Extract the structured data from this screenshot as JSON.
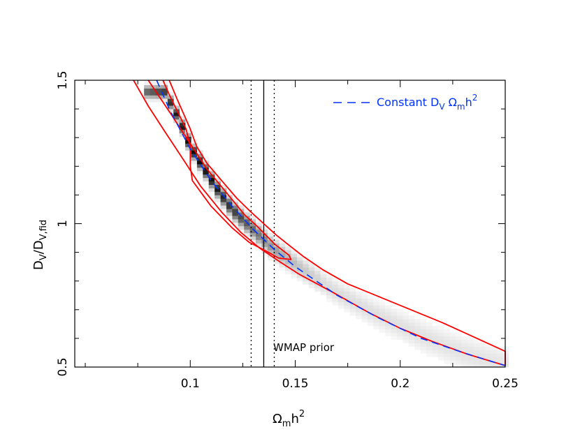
{
  "chart_data": {
    "type": "heatmap",
    "title": "",
    "xlabel": {
      "main": "Ω",
      "sub": "m",
      "rest": "h",
      "sup": "2"
    },
    "ylabel": {
      "main": "D",
      "sub": "V",
      "mid": "/D",
      "sub2": "V,fid"
    },
    "xlim": [
      0.045,
      0.25
    ],
    "ylim": [
      0.5,
      1.5
    ],
    "x_ticks": [
      {
        "value": 0.1,
        "label": "0.1"
      },
      {
        "value": 0.15,
        "label": "0.15"
      },
      {
        "value": 0.2,
        "label": "0.2"
      },
      {
        "value": 0.25,
        "label": "0.25"
      }
    ],
    "y_ticks": [
      {
        "value": 0.5,
        "label": "0.5"
      },
      {
        "value": 1.0,
        "label": "1"
      },
      {
        "value": 1.5,
        "label": "1.5"
      }
    ],
    "density": {
      "description_ridge": "grayscale posterior density concentrated along a ridge",
      "ridge": [
        [
          0.088,
          1.46
        ],
        [
          0.095,
          1.36
        ],
        [
          0.1,
          1.27
        ],
        [
          0.106,
          1.2
        ],
        [
          0.113,
          1.12
        ],
        [
          0.12,
          1.05
        ],
        [
          0.13,
          0.98
        ],
        [
          0.14,
          0.91
        ],
        [
          0.15,
          0.86
        ],
        [
          0.17,
          0.76
        ],
        [
          0.19,
          0.68
        ],
        [
          0.21,
          0.61
        ],
        [
          0.23,
          0.55
        ],
        [
          0.25,
          0.505
        ]
      ],
      "peak": [
        0.102,
        1.25
      ]
    },
    "contours": [
      {
        "name": "inner",
        "color": "#ff0000",
        "points": [
          [
            0.08,
            1.5
          ],
          [
            0.091,
            1.38
          ],
          [
            0.099,
            1.29
          ],
          [
            0.108,
            1.19
          ],
          [
            0.117,
            1.11
          ],
          [
            0.126,
            1.03
          ],
          [
            0.132,
            0.99
          ],
          [
            0.14,
            0.93
          ],
          [
            0.147,
            0.89
          ],
          [
            0.148,
            0.875
          ],
          [
            0.142,
            0.88
          ],
          [
            0.136,
            0.905
          ],
          [
            0.128,
            0.935
          ],
          [
            0.12,
            0.985
          ],
          [
            0.11,
            1.06
          ],
          [
            0.101,
            1.15
          ],
          [
            0.1,
            1.2
          ],
          [
            0.1,
            1.27
          ],
          [
            0.098,
            1.33
          ],
          [
            0.094,
            1.39
          ],
          [
            0.09,
            1.45
          ],
          [
            0.087,
            1.5
          ]
        ]
      },
      {
        "name": "outer",
        "color": "#ff0000",
        "points": [
          [
            0.073,
            1.5
          ],
          [
            0.08,
            1.41
          ],
          [
            0.088,
            1.32
          ],
          [
            0.097,
            1.22
          ],
          [
            0.105,
            1.13
          ],
          [
            0.115,
            1.04
          ],
          [
            0.124,
            0.97
          ],
          [
            0.133,
            0.915
          ],
          [
            0.142,
            0.87
          ],
          [
            0.152,
            0.823
          ],
          [
            0.168,
            0.76
          ],
          [
            0.185,
            0.69
          ],
          [
            0.2,
            0.635
          ],
          [
            0.215,
            0.59
          ],
          [
            0.232,
            0.545
          ],
          [
            0.25,
            0.505
          ],
          [
            0.25,
            0.555
          ],
          [
            0.235,
            0.605
          ],
          [
            0.22,
            0.655
          ],
          [
            0.205,
            0.7
          ],
          [
            0.19,
            0.745
          ],
          [
            0.175,
            0.79
          ],
          [
            0.163,
            0.84
          ],
          [
            0.154,
            0.885
          ],
          [
            0.147,
            0.925
          ],
          [
            0.141,
            0.96
          ],
          [
            0.135,
            1.0
          ],
          [
            0.129,
            1.04
          ],
          [
            0.122,
            1.09
          ],
          [
            0.115,
            1.15
          ],
          [
            0.108,
            1.21
          ],
          [
            0.103,
            1.27
          ],
          [
            0.1,
            1.33
          ],
          [
            0.097,
            1.38
          ],
          [
            0.094,
            1.43
          ],
          [
            0.09,
            1.5
          ]
        ]
      }
    ],
    "dashed_curve": {
      "name": "Constant D_V Ω_m h^2",
      "color": "#0033ff",
      "points": [
        [
          0.084,
          1.5
        ],
        [
          0.09,
          1.4
        ],
        [
          0.1,
          1.26
        ],
        [
          0.11,
          1.15
        ],
        [
          0.12,
          1.06
        ],
        [
          0.13,
          0.98
        ],
        [
          0.14,
          0.91
        ],
        [
          0.15,
          0.85
        ],
        [
          0.17,
          0.75
        ],
        [
          0.19,
          0.67
        ],
        [
          0.21,
          0.6
        ],
        [
          0.23,
          0.55
        ],
        [
          0.25,
          0.505
        ]
      ]
    },
    "vertical_lines": [
      {
        "name": "wmap-central",
        "x": 0.135,
        "style": "solid"
      },
      {
        "name": "wmap-lower",
        "x": 0.129,
        "style": "dotted"
      },
      {
        "name": "wmap-upper",
        "x": 0.14,
        "style": "dotted"
      }
    ],
    "legend": {
      "position": "top-right",
      "label_main": "Constant D",
      "label_sub": "V",
      "label_omega": " Ω",
      "label_omega_sub": "m",
      "label_h": "h",
      "label_sup": "2",
      "color": "#0033ff"
    },
    "annotation": {
      "text": "WMAP prior",
      "x": 0.139,
      "y": 0.556
    },
    "grid": false
  }
}
